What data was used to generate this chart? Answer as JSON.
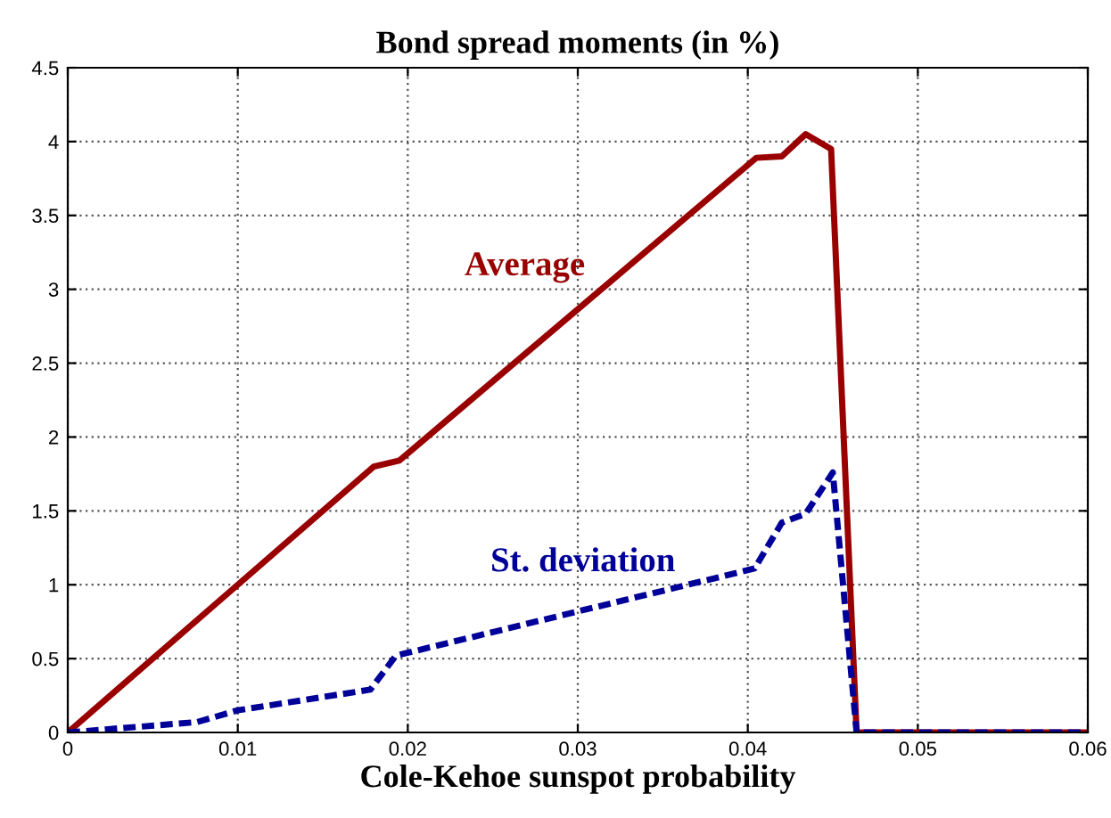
{
  "chart_data": {
    "type": "line",
    "title": "Bond spread moments (in %)",
    "xlabel": "Cole-Kehoe sunspot probability",
    "series": [
      {
        "name": "Average",
        "color": "#990000",
        "line_style": "solid",
        "x": [
          0,
          0.018,
          0.0195,
          0.0405,
          0.042,
          0.0434,
          0.0449,
          0.0464,
          0.06
        ],
        "values": [
          0,
          1.8,
          1.84,
          3.89,
          3.9,
          4.05,
          3.95,
          0,
          0
        ]
      },
      {
        "name": "St. deviation",
        "color": "#000099",
        "line_style": "dashed",
        "x": [
          0,
          0.0076,
          0.01,
          0.0178,
          0.0193,
          0.0404,
          0.042,
          0.0434,
          0.045,
          0.0464,
          0.06
        ],
        "values": [
          0,
          0.07,
          0.15,
          0.29,
          0.52,
          1.11,
          1.42,
          1.48,
          1.76,
          0,
          0
        ]
      }
    ],
    "xlim": [
      0,
      0.06
    ],
    "xticks": [
      0,
      0.01,
      0.02,
      0.03,
      0.04,
      0.05,
      0.06
    ],
    "ylim": [
      0,
      4.5
    ],
    "yticks": [
      0,
      0.5,
      1,
      1.5,
      2,
      2.5,
      3,
      3.5,
      4,
      4.5
    ],
    "grid": true,
    "legend": false,
    "marker": "none"
  }
}
